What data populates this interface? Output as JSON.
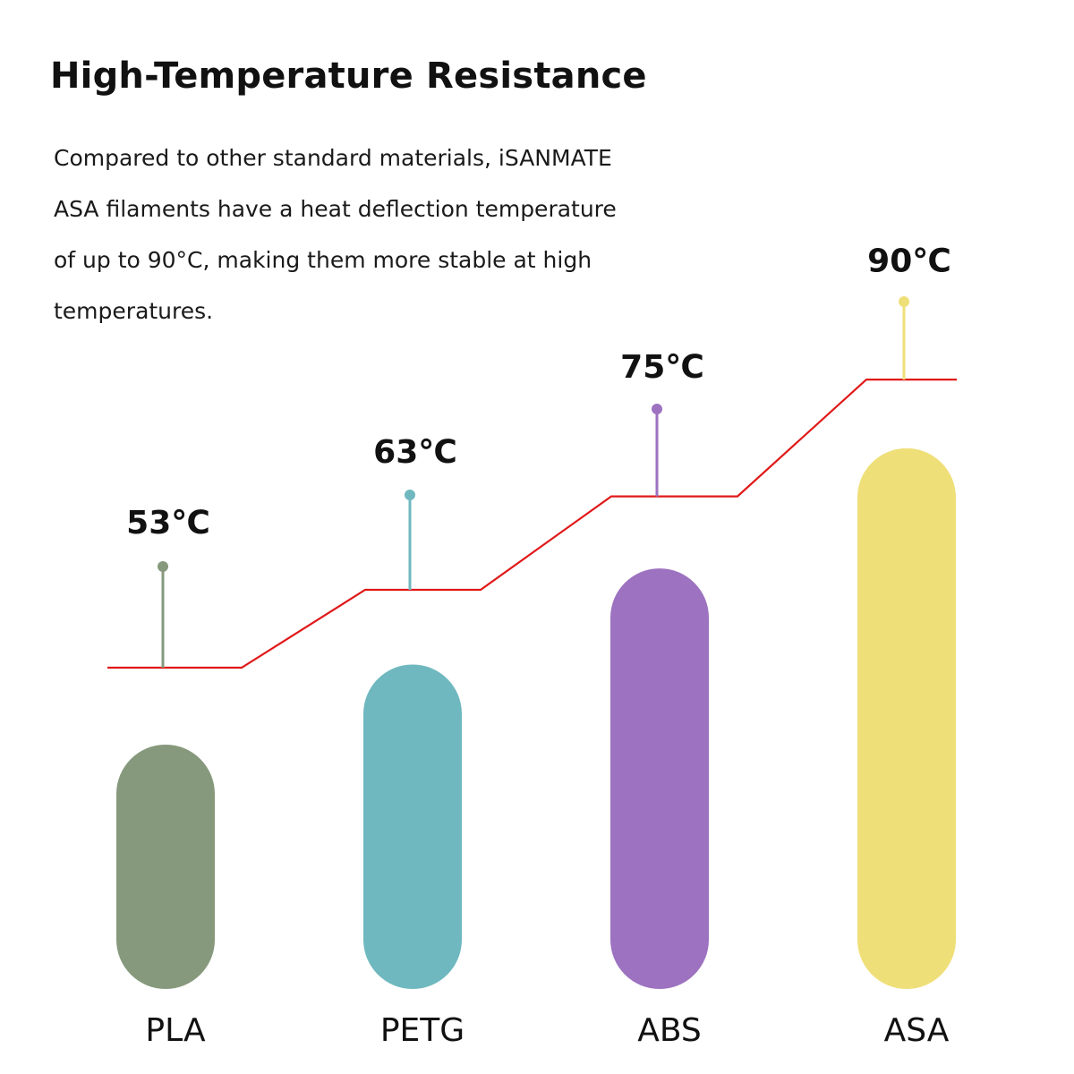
{
  "header": {
    "title": "High-Temperature Resistance",
    "description": "Compared to other standard materials, iSANMATE ASA filaments have a heat deflection temperature of up to 90°C, making them more stable at high temperatures."
  },
  "chart_data": {
    "type": "bar",
    "title": "High-Temperature Resistance",
    "categories": [
      "PLA",
      "PETG",
      "ABS",
      "ASA"
    ],
    "values": [
      53,
      63,
      75,
      90
    ],
    "value_labels": [
      "53℃",
      "63℃",
      "75℃",
      "90℃"
    ],
    "unit": "℃",
    "colors": [
      "#86997C",
      "#6FB8BF",
      "#9D72C0",
      "#EFDF79"
    ],
    "line_color": "#E01818",
    "xlabel": "",
    "ylabel": "",
    "grid": false,
    "legend": "none"
  }
}
